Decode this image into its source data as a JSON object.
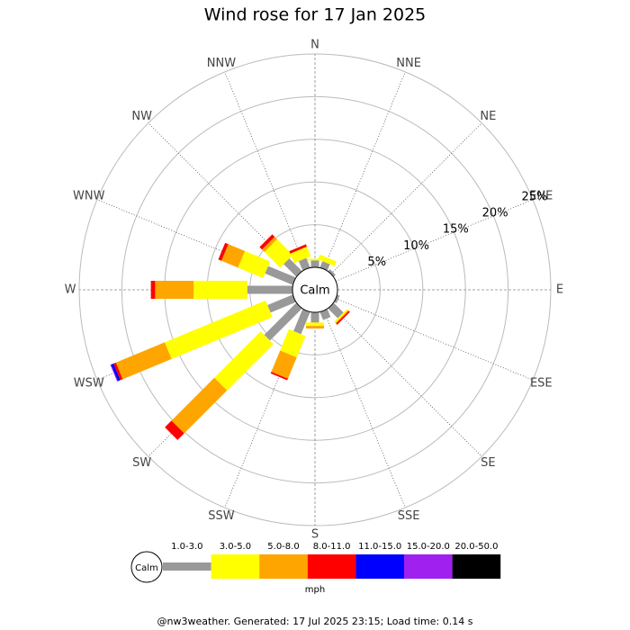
{
  "chart_data": {
    "type": "wind-rose",
    "title": "Wind rose for 17 Jan 2025",
    "directions": [
      "N",
      "NNE",
      "NE",
      "ENE",
      "E",
      "ESE",
      "SE",
      "SSE",
      "S",
      "SSW",
      "SW",
      "WSW",
      "W",
      "WNW",
      "NW",
      "NNW"
    ],
    "calm_label": "Calm",
    "rlim": [
      0,
      25
    ],
    "rticks": [
      {
        "value": 5,
        "label": "5%"
      },
      {
        "value": 10,
        "label": "10%"
      },
      {
        "value": 15,
        "label": "15%"
      },
      {
        "value": 20,
        "label": "20%"
      },
      {
        "value": 25,
        "label": "25%"
      }
    ],
    "series": [
      {
        "name": "1.0-3.0",
        "color": "#999999",
        "values": [
          0.8,
          0.8,
          0.3,
          0,
          0,
          0.3,
          1.6,
          1.0,
          1.2,
          2.8,
          5.3,
          3.2,
          5.3,
          3.5,
          2.1,
          1.2
        ]
      },
      {
        "name": "3.0-5.0",
        "color": "#ffff00",
        "values": [
          0.2,
          0.6,
          0,
          0,
          0,
          0,
          0.2,
          0,
          0.4,
          2.7,
          7.7,
          12.8,
          6.3,
          3.2,
          2.6,
          1.2
        ]
      },
      {
        "name": "5.0-8.0",
        "color": "#ffa500",
        "values": [
          0,
          0,
          0,
          0,
          0,
          0,
          0.1,
          0,
          0.3,
          2.7,
          7.1,
          6.2,
          4.5,
          2.1,
          0.4,
          0
        ]
      },
      {
        "name": "8.0-11.0",
        "color": "#ff0000",
        "values": [
          0,
          0,
          0,
          0,
          0,
          0,
          0.2,
          0,
          0,
          0.2,
          1.1,
          0.3,
          0.5,
          0.4,
          0.4,
          0.3
        ]
      },
      {
        "name": "11.0-15.0",
        "color": "#0000ff",
        "values": [
          0,
          0,
          0,
          0,
          0,
          0,
          0,
          0,
          0,
          0,
          0,
          0.3,
          0,
          0,
          0,
          0
        ]
      },
      {
        "name": "15.0-20.0",
        "color": "#a020f0",
        "values": [
          0,
          0,
          0,
          0,
          0,
          0,
          0,
          0,
          0,
          0,
          0,
          0.1,
          0,
          0,
          0,
          0
        ]
      },
      {
        "name": "20.0-50.0",
        "color": "#000000",
        "values": [
          0,
          0,
          0,
          0,
          0,
          0,
          0,
          0,
          0,
          0,
          0,
          0,
          0,
          0,
          0,
          0
        ]
      }
    ],
    "unit": "mph",
    "footer": "@nw3weather. Generated: 17 Jul 2025 23:15; Load time: 0.14 s"
  }
}
